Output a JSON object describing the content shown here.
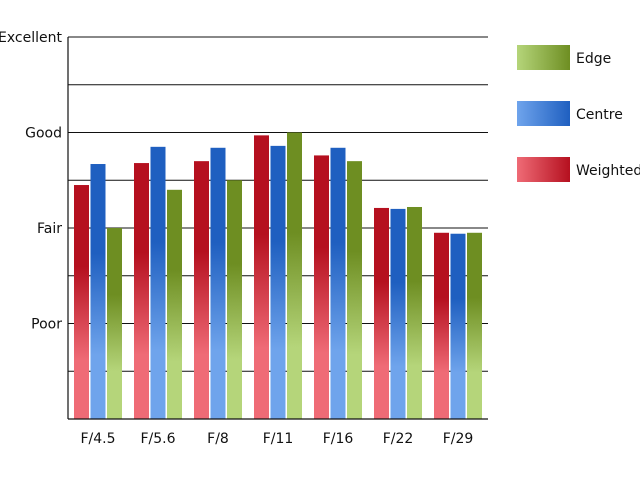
{
  "chart_data": {
    "type": "bar",
    "categories": [
      "F/4.5",
      "F/5.6",
      "F/8",
      "F/11",
      "F/16",
      "F/22",
      "F/29"
    ],
    "series": [
      {
        "name": "Weighted",
        "values": [
          2.45,
          2.68,
          2.7,
          2.97,
          2.76,
          2.21,
          1.95
        ]
      },
      {
        "name": "Centre",
        "values": [
          2.67,
          2.85,
          2.84,
          2.86,
          2.84,
          2.2,
          1.94
        ]
      },
      {
        "name": "Edge",
        "values": [
          2.0,
          2.4,
          2.5,
          3.0,
          2.7,
          2.22,
          1.95
        ]
      }
    ],
    "ylim": [
      0,
      4
    ],
    "yticks": [
      {
        "value": 1,
        "label": "Poor"
      },
      {
        "value": 2,
        "label": "Fair"
      },
      {
        "value": 3,
        "label": "Good"
      },
      {
        "value": 4,
        "label": "Excellent"
      }
    ],
    "grid": "horizontal, every 0.5",
    "legend_placement": "right",
    "legend_order": [
      "Edge",
      "Centre",
      "Weighted"
    ],
    "colors": {
      "Weighted": {
        "dark": "#b5101f",
        "light": "#ef6b76"
      },
      "Centre": {
        "dark": "#1f5fc0",
        "light": "#6fa4ec"
      },
      "Edge": {
        "dark": "#6e8e22",
        "light": "#b5d57a"
      }
    }
  }
}
